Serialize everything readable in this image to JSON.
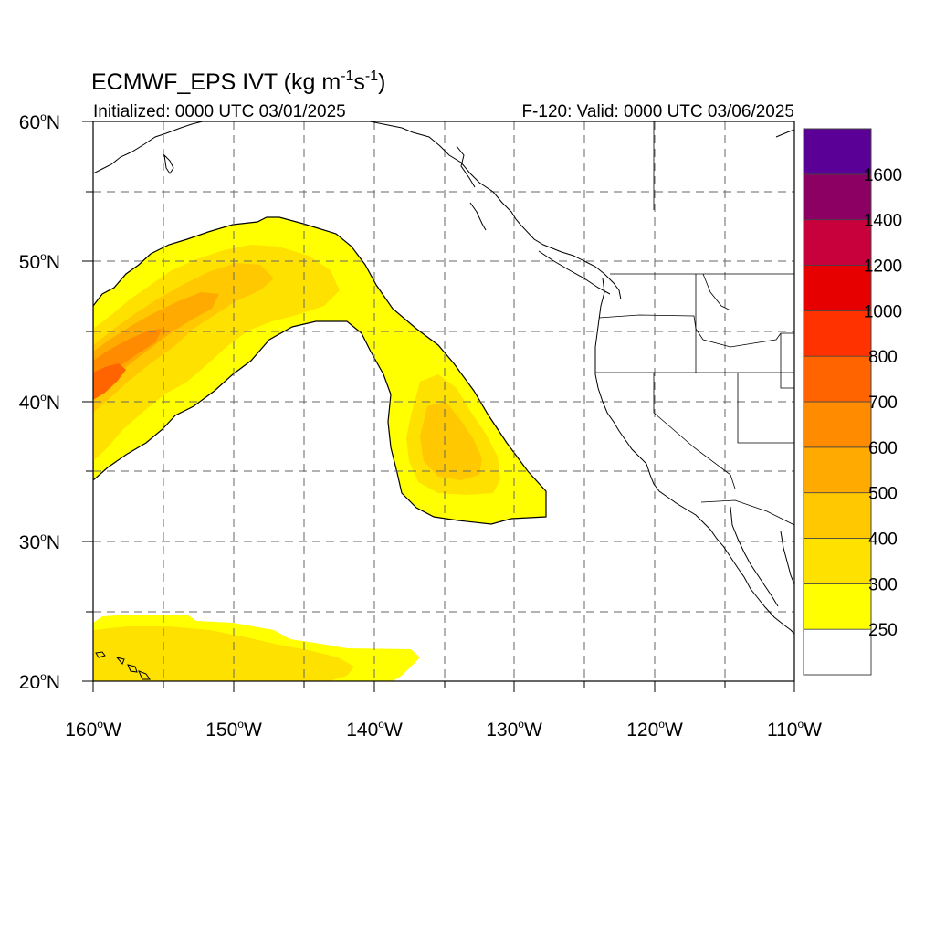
{
  "title": {
    "main": "ECMWF_EPS IVT (kg m",
    "sup1": "-1",
    "mid": "s",
    "sup2": "-1",
    "end": ")"
  },
  "subtitle_left": "Initialized: 0000 UTC 03/01/2025",
  "subtitle_right": "F-120: Valid: 0000 UTC 03/06/2025",
  "lat_labels": [
    {
      "deg": "60",
      "hemi": "N"
    },
    {
      "deg": "50",
      "hemi": "N"
    },
    {
      "deg": "40",
      "hemi": "N"
    },
    {
      "deg": "30",
      "hemi": "N"
    },
    {
      "deg": "20",
      "hemi": "N"
    }
  ],
  "lon_labels": [
    {
      "deg": "160",
      "hemi": "W"
    },
    {
      "deg": "150",
      "hemi": "W"
    },
    {
      "deg": "140",
      "hemi": "W"
    },
    {
      "deg": "130",
      "hemi": "W"
    },
    {
      "deg": "120",
      "hemi": "W"
    },
    {
      "deg": "110",
      "hemi": "W"
    }
  ],
  "colorbar": {
    "colors": [
      "#ffffff",
      "#ffff00",
      "#ffe100",
      "#ffc800",
      "#ffaa00",
      "#ff8c00",
      "#ff6400",
      "#ff3200",
      "#e60000",
      "#c8003c",
      "#8c0064",
      "#5a0096"
    ],
    "labels": [
      "250",
      "300",
      "400",
      "500",
      "600",
      "700",
      "800",
      "1000",
      "1200",
      "1400",
      "1600"
    ]
  },
  "chart_data": {
    "type": "heatmap",
    "projection": "cylindrical equidistant",
    "extent": {
      "lon": [
        -160,
        -110
      ],
      "lat": [
        20,
        60
      ]
    },
    "grid": "dashed every 5 degrees",
    "variable": "IVT",
    "levels": [
      250,
      300,
      400,
      500,
      600,
      700,
      800,
      1000,
      1200,
      1400,
      1600
    ],
    "features": [
      {
        "name": "atmospheric river",
        "max_ivt_approx": 700,
        "core_lat": 41.5,
        "core_lon": -159.5
      },
      {
        "name": "southern branch",
        "max_ivt_approx": 400,
        "core_lat": 36,
        "core_lon": -134
      },
      {
        "name": "subtropical band",
        "max_ivt_approx": 350,
        "core_lat": 22,
        "core_lon": -150
      }
    ]
  }
}
